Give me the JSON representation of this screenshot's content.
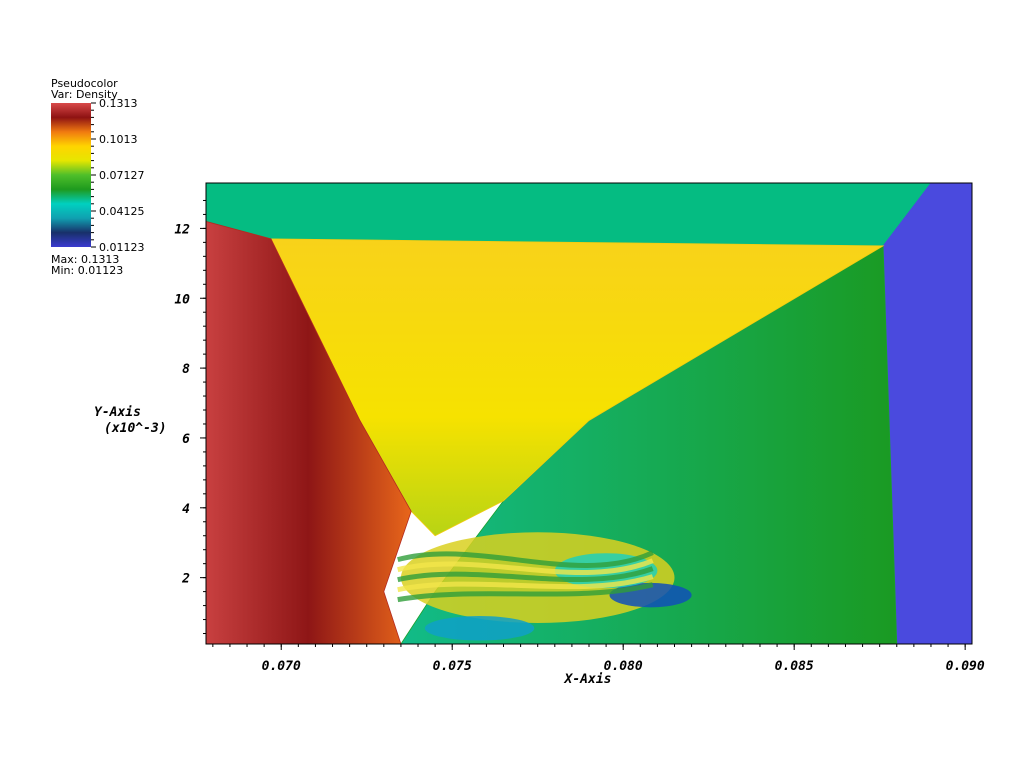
{
  "legend": {
    "title_line1": "Pseudocolor",
    "title_line2": "Var: Density",
    "max_text": "Max: 0.1313",
    "min_text": "Min: 0.01123",
    "tick_labels": [
      "0.1313",
      "0.1013",
      "0.07127",
      "0.04125",
      "0.01123"
    ],
    "colormap": [
      "#d94a4a",
      "#8e1212",
      "#f07a10",
      "#ffd400",
      "#e6e600",
      "#4fbf2a",
      "#1e9a1e",
      "#00d0c0",
      "#10a0b0",
      "#18306a",
      "#3a3ad0"
    ]
  },
  "chart_data": {
    "type": "heatmap",
    "variable": "Density",
    "value_range": [
      0.01123,
      0.1313
    ],
    "xlabel": "X-Axis",
    "ylabel_line1": "Y-Axis",
    "ylabel_line2": "(x10^-3)",
    "xlim": [
      0.0678,
      0.0902
    ],
    "ylim": [
      0.1,
      13.3
    ],
    "x_ticks": [
      0.07,
      0.075,
      0.08,
      0.085,
      0.09
    ],
    "x_tick_labels": [
      "0.070",
      "0.075",
      "0.080",
      "0.085",
      "0.090"
    ],
    "y_ticks": [
      2,
      4,
      6,
      8,
      10,
      12
    ],
    "y_tick_labels": [
      "2",
      "4",
      "6",
      "8",
      "10",
      "12"
    ],
    "regions": [
      {
        "name": "upper-band",
        "color": "#05bc82",
        "points": [
          [
            0.0678,
            13.3
          ],
          [
            0.089,
            13.3
          ],
          [
            0.0876,
            11.5
          ],
          [
            0.0697,
            11.7
          ],
          [
            0.0678,
            12.2
          ]
        ]
      },
      {
        "name": "right-band",
        "color": "#4a4ade",
        "points": [
          [
            0.089,
            13.3
          ],
          [
            0.0902,
            13.3
          ],
          [
            0.0902,
            0.1
          ],
          [
            0.088,
            0.1
          ],
          [
            0.0876,
            11.5
          ]
        ]
      },
      {
        "name": "post-shock-green",
        "color": "#1ba12c",
        "points": [
          [
            0.0876,
            11.5
          ],
          [
            0.088,
            0.1
          ],
          [
            0.0735,
            0.1
          ],
          [
            0.0745,
            1.6
          ],
          [
            0.0765,
            4.2
          ],
          [
            0.079,
            6.5
          ],
          [
            0.0876,
            11.5
          ]
        ]
      },
      {
        "name": "yellow-wedge",
        "color": "#f2cc10",
        "points": [
          [
            0.0697,
            11.7
          ],
          [
            0.0876,
            11.5
          ],
          [
            0.079,
            6.5
          ],
          [
            0.0765,
            4.2
          ],
          [
            0.0745,
            3.2
          ],
          [
            0.0738,
            3.9
          ],
          [
            0.0723,
            6.5
          ]
        ]
      },
      {
        "name": "dense-red",
        "color": "#b42a20",
        "points": [
          [
            0.0678,
            12.2
          ],
          [
            0.0697,
            11.7
          ],
          [
            0.0723,
            6.5
          ],
          [
            0.0738,
            3.9
          ],
          [
            0.073,
            1.6
          ],
          [
            0.0735,
            0.1
          ],
          [
            0.0678,
            0.1
          ]
        ]
      }
    ],
    "features": [
      {
        "name": "vortex-layer",
        "color": "#d9d020",
        "center": [
          0.0775,
          2.0
        ],
        "radius": [
          0.004,
          1.3
        ]
      },
      {
        "name": "low-density-pocket-1",
        "color": "#1050b8",
        "center": [
          0.0808,
          1.5
        ],
        "radius": [
          0.0012,
          0.35
        ]
      },
      {
        "name": "low-density-pocket-2",
        "color": "#0fa0c8",
        "center": [
          0.0758,
          0.55
        ],
        "radius": [
          0.0016,
          0.35
        ]
      },
      {
        "name": "cyan-eddy",
        "color": "#20d0b8",
        "center": [
          0.0795,
          2.2
        ],
        "radius": [
          0.0015,
          0.5
        ]
      }
    ]
  }
}
